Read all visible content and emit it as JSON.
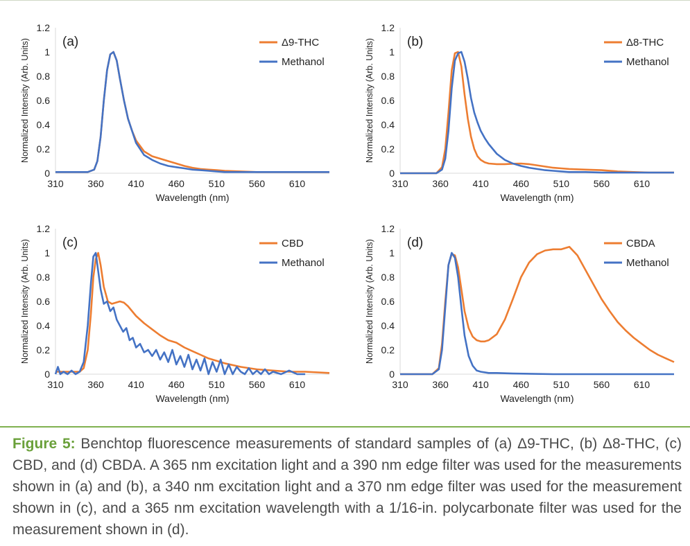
{
  "caption": {
    "lead": "Figure 5:",
    "body": " Benchtop fluorescence measurements of standard samples of (a) Δ9-THC, (b) Δ8-THC, (c) CBD, and (d) CBDA. A 365 nm excitation light and a 390 nm edge filter was used for the measurements shown in (a) and (b), a 340 nm excitation light and a 370 nm edge filter was used for the measurement shown in (c), and a 365 nm excitation wavelength with a 1/16-in. polycarbonate filter was used for the measurement shown in (d)."
  },
  "colors": {
    "sample": "#ed7d31",
    "methanol": "#4472c4",
    "axis": "#d9d9d9",
    "text": "#222222"
  },
  "chart_data": [
    {
      "type": "line",
      "panel_label": "(a)",
      "xlabel": "Wavelength (nm)",
      "ylabel": "Normalized Intensity (Arb. Units)",
      "xlim": [
        310,
        650
      ],
      "ylim": [
        0,
        1.2
      ],
      "xticks": [
        310,
        360,
        410,
        460,
        510,
        560,
        610
      ],
      "yticks": [
        0,
        0.2,
        0.4,
        0.6,
        0.8,
        1,
        1.2
      ],
      "ytick_labels": [
        "0",
        "0.2",
        "0.4",
        "0.6",
        "0.8",
        "1",
        "1.2"
      ],
      "legend_position": "top-right",
      "series": [
        {
          "name": "Δ9-THC",
          "color": "#ed7d31",
          "x": [
            310,
            350,
            358,
            362,
            366,
            370,
            374,
            378,
            382,
            386,
            390,
            395,
            400,
            405,
            410,
            420,
            430,
            440,
            450,
            460,
            470,
            480,
            490,
            500,
            510,
            520,
            540,
            560,
            580,
            600,
            620,
            650
          ],
          "y": [
            0.01,
            0.01,
            0.03,
            0.1,
            0.3,
            0.6,
            0.85,
            0.98,
            1.0,
            0.93,
            0.78,
            0.6,
            0.45,
            0.35,
            0.27,
            0.18,
            0.14,
            0.12,
            0.1,
            0.08,
            0.06,
            0.045,
            0.035,
            0.03,
            0.025,
            0.02,
            0.015,
            0.01,
            0.01,
            0.01,
            0.01,
            0.01
          ]
        },
        {
          "name": "Methanol",
          "color": "#4472c4",
          "x": [
            310,
            350,
            358,
            362,
            366,
            370,
            374,
            378,
            382,
            386,
            390,
            395,
            400,
            405,
            410,
            420,
            430,
            440,
            450,
            460,
            470,
            480,
            490,
            500,
            510,
            520,
            540,
            560,
            580,
            600,
            620,
            650
          ],
          "y": [
            0.01,
            0.01,
            0.03,
            0.1,
            0.3,
            0.6,
            0.85,
            0.98,
            1.0,
            0.93,
            0.78,
            0.6,
            0.45,
            0.35,
            0.25,
            0.15,
            0.11,
            0.08,
            0.06,
            0.05,
            0.04,
            0.03,
            0.025,
            0.02,
            0.015,
            0.01,
            0.01,
            0.01,
            0.01,
            0.01,
            0.01,
            0.01
          ]
        }
      ]
    },
    {
      "type": "line",
      "panel_label": "(b)",
      "xlabel": "Wavelength (nm)",
      "ylabel": "Normalized Intensity (Arb. Units)",
      "xlim": [
        310,
        650
      ],
      "ylim": [
        0,
        1.2
      ],
      "xticks": [
        310,
        360,
        410,
        460,
        510,
        560,
        610
      ],
      "yticks": [
        0,
        0.2,
        0.4,
        0.6,
        0.8,
        1,
        1.2
      ],
      "ytick_labels": [
        "0",
        "0.2",
        "0.4",
        "0.6",
        "0.8",
        "1",
        "1.2"
      ],
      "legend_position": "top-right",
      "series": [
        {
          "name": "Δ8-THC",
          "color": "#ed7d31",
          "x": [
            310,
            355,
            362,
            366,
            370,
            374,
            378,
            382,
            386,
            390,
            394,
            398,
            402,
            406,
            410,
            415,
            420,
            430,
            440,
            450,
            460,
            470,
            480,
            490,
            500,
            510,
            520,
            540,
            560,
            580,
            600,
            620,
            650
          ],
          "y": [
            0.0,
            0.0,
            0.05,
            0.2,
            0.5,
            0.85,
            0.99,
            1.0,
            0.88,
            0.65,
            0.45,
            0.3,
            0.2,
            0.14,
            0.11,
            0.09,
            0.08,
            0.075,
            0.075,
            0.078,
            0.08,
            0.075,
            0.065,
            0.055,
            0.045,
            0.04,
            0.035,
            0.03,
            0.025,
            0.015,
            0.01,
            0.005,
            0.005
          ]
        },
        {
          "name": "Methanol",
          "color": "#4472c4",
          "x": [
            310,
            355,
            362,
            366,
            370,
            374,
            378,
            382,
            386,
            390,
            394,
            398,
            402,
            406,
            410,
            415,
            420,
            430,
            440,
            450,
            460,
            470,
            480,
            490,
            500,
            510,
            520,
            540,
            560,
            580,
            600,
            620,
            650
          ],
          "y": [
            0.0,
            0.0,
            0.03,
            0.12,
            0.35,
            0.7,
            0.93,
            0.99,
            1.0,
            0.92,
            0.78,
            0.62,
            0.5,
            0.42,
            0.35,
            0.29,
            0.24,
            0.16,
            0.11,
            0.08,
            0.06,
            0.045,
            0.035,
            0.025,
            0.02,
            0.015,
            0.01,
            0.01,
            0.005,
            0.005,
            0.005,
            0.005,
            0.005
          ]
        }
      ]
    },
    {
      "type": "line",
      "panel_label": "(c)",
      "xlabel": "Wavelength (nm)",
      "ylabel": "Normalized Intensity (Arb. Units)",
      "xlim": [
        310,
        650
      ],
      "ylim": [
        0,
        1.2
      ],
      "xticks": [
        310,
        360,
        410,
        460,
        510,
        560,
        610
      ],
      "yticks": [
        0,
        0.2,
        0.4,
        0.6,
        0.8,
        1,
        1.2
      ],
      "ytick_labels": [
        "0",
        "0.2",
        "0.4",
        "0.6",
        "0.8",
        "1",
        "1.2"
      ],
      "legend_position": "top-right",
      "series": [
        {
          "name": "CBD",
          "color": "#ed7d31",
          "x": [
            310,
            340,
            345,
            350,
            354,
            357,
            360,
            363,
            366,
            370,
            375,
            380,
            385,
            390,
            395,
            400,
            410,
            420,
            430,
            440,
            450,
            460,
            470,
            480,
            490,
            500,
            510,
            520,
            540,
            560,
            580,
            600,
            620,
            650
          ],
          "y": [
            0.02,
            0.02,
            0.05,
            0.2,
            0.5,
            0.8,
            0.95,
            1.0,
            0.9,
            0.72,
            0.6,
            0.58,
            0.59,
            0.6,
            0.59,
            0.56,
            0.48,
            0.42,
            0.37,
            0.32,
            0.28,
            0.26,
            0.22,
            0.19,
            0.16,
            0.13,
            0.11,
            0.09,
            0.06,
            0.04,
            0.03,
            0.02,
            0.02,
            0.01
          ]
        },
        {
          "name": "Methanol",
          "color": "#4472c4",
          "x": [
            310,
            313,
            316,
            320,
            325,
            330,
            335,
            340,
            345,
            350,
            354,
            357,
            360,
            363,
            366,
            370,
            374,
            378,
            382,
            386,
            390,
            394,
            398,
            402,
            406,
            410,
            415,
            420,
            425,
            430,
            435,
            440,
            445,
            450,
            455,
            460,
            465,
            470,
            475,
            480,
            485,
            490,
            495,
            500,
            505,
            510,
            515,
            520,
            525,
            530,
            535,
            540,
            545,
            550,
            555,
            560,
            565,
            570,
            575,
            580,
            590,
            600,
            610,
            620
          ],
          "y": [
            0.0,
            0.06,
            0.0,
            0.02,
            0.0,
            0.03,
            0.0,
            0.02,
            0.1,
            0.4,
            0.75,
            0.97,
            1.0,
            0.85,
            0.7,
            0.58,
            0.6,
            0.52,
            0.55,
            0.45,
            0.4,
            0.35,
            0.38,
            0.28,
            0.3,
            0.22,
            0.25,
            0.18,
            0.2,
            0.15,
            0.2,
            0.12,
            0.18,
            0.1,
            0.2,
            0.08,
            0.15,
            0.06,
            0.16,
            0.04,
            0.12,
            0.03,
            0.13,
            0.0,
            0.1,
            0.02,
            0.12,
            0.0,
            0.08,
            0.0,
            0.06,
            0.02,
            0.0,
            0.05,
            0.0,
            0.03,
            0.0,
            0.04,
            0.0,
            0.02,
            0.0,
            0.03,
            0.0,
            0.0
          ]
        }
      ]
    },
    {
      "type": "line",
      "panel_label": "(d)",
      "xlabel": "Wavelength (nm)",
      "ylabel": "Normalized Intensity (Arb. Units)",
      "xlim": [
        310,
        650
      ],
      "ylim": [
        0,
        1.2
      ],
      "xticks": [
        310,
        360,
        410,
        460,
        510,
        560,
        610
      ],
      "yticks": [
        0,
        0.2,
        0.4,
        0.6,
        0.8,
        1,
        1.2
      ],
      "ytick_labels": [
        "0",
        "0.2",
        "0.4",
        "0.6",
        "0.8",
        "1",
        "1.2"
      ],
      "legend_position": "top-right",
      "series": [
        {
          "name": "CBDA",
          "color": "#ed7d31",
          "x": [
            310,
            350,
            358,
            362,
            366,
            370,
            374,
            378,
            382,
            386,
            390,
            395,
            400,
            405,
            410,
            415,
            420,
            430,
            440,
            450,
            460,
            470,
            480,
            490,
            500,
            510,
            520,
            530,
            540,
            550,
            560,
            570,
            580,
            590,
            600,
            610,
            620,
            630,
            640,
            650
          ],
          "y": [
            0.0,
            0.0,
            0.05,
            0.25,
            0.6,
            0.9,
            0.99,
            0.98,
            0.88,
            0.7,
            0.52,
            0.38,
            0.31,
            0.28,
            0.27,
            0.27,
            0.28,
            0.33,
            0.45,
            0.62,
            0.8,
            0.92,
            0.99,
            1.02,
            1.03,
            1.03,
            1.05,
            0.98,
            0.86,
            0.74,
            0.62,
            0.52,
            0.43,
            0.36,
            0.3,
            0.25,
            0.2,
            0.16,
            0.13,
            0.1
          ]
        },
        {
          "name": "Methanol",
          "color": "#4472c4",
          "x": [
            310,
            350,
            358,
            362,
            366,
            370,
            374,
            378,
            382,
            386,
            390,
            395,
            400,
            405,
            410,
            420,
            430,
            450,
            500,
            550,
            600,
            650
          ],
          "y": [
            0.0,
            0.0,
            0.04,
            0.2,
            0.55,
            0.9,
            1.0,
            0.96,
            0.8,
            0.55,
            0.32,
            0.15,
            0.07,
            0.03,
            0.02,
            0.01,
            0.01,
            0.005,
            0.0,
            0.0,
            0.0,
            0.0
          ]
        }
      ]
    }
  ]
}
